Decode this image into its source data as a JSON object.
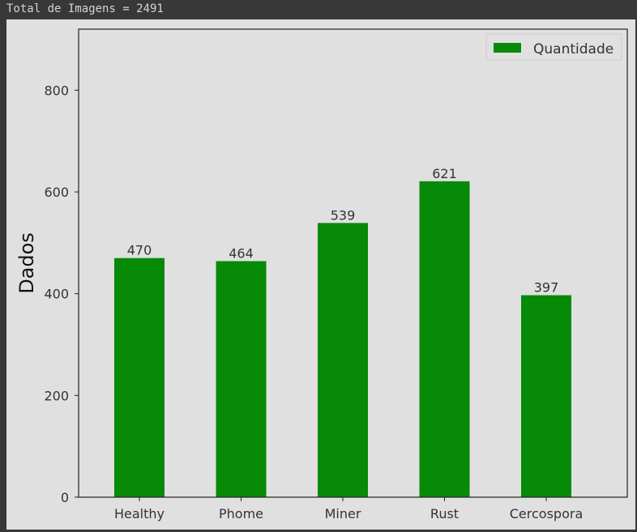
{
  "console": {
    "output_line": "Total de Imagens = 2491"
  },
  "colors": {
    "bar": "#078a07",
    "axes_bg": "#e0e0e0",
    "text": "#333333"
  },
  "chart_data": {
    "type": "bar",
    "categories": [
      "Healthy",
      "Phome",
      "Miner",
      "Rust",
      "Cercospora"
    ],
    "series": [
      {
        "name": "Quantidade",
        "values": [
          470,
          464,
          539,
          621,
          397
        ]
      }
    ],
    "data_labels": [
      "470",
      "464",
      "539",
      "621",
      "397"
    ],
    "title": "",
    "xlabel": "",
    "ylabel": "Dados",
    "ylim": [
      0,
      920
    ],
    "yticks": [
      0,
      200,
      400,
      600,
      800
    ],
    "grid": false,
    "legend_position": "top-right"
  }
}
